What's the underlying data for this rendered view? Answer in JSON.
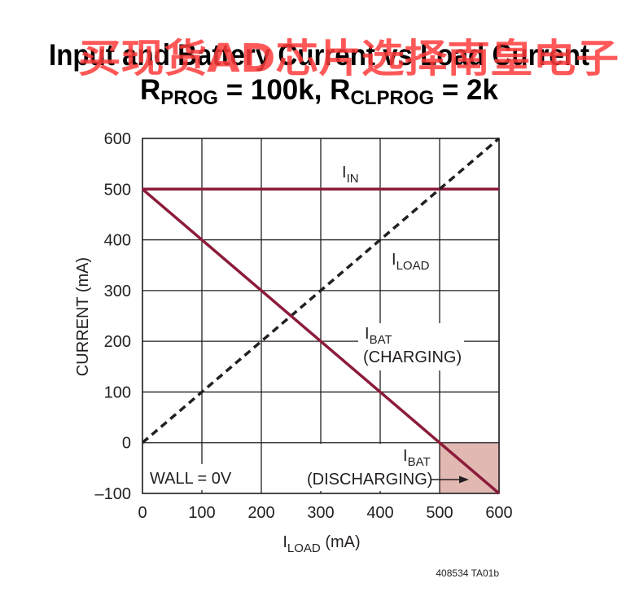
{
  "title": {
    "line1": "Input and Battery Current vs Load Current",
    "line2_r1": "R",
    "line2_r1_sub": "PROG",
    "line2_mid": " = 100k, R",
    "line2_r2_sub": "CLPROG",
    "line2_end": " = 2k"
  },
  "watermark": "买现货AD芯片选择南皇电子",
  "figure_id": "408534 TA01b",
  "colors": {
    "curve": "#8c1c3a",
    "shade": "#e2b8b3",
    "grid": "#231f20",
    "watermark": "#ff3b3b"
  },
  "chart_data": {
    "type": "line",
    "xlabel_main": "I",
    "xlabel_sub": "LOAD",
    "xlabel_unit": " (mA)",
    "ylabel": "CURRENT (mA)",
    "xlim": [
      0,
      600
    ],
    "ylim": [
      -100,
      600
    ],
    "x_ticks": [
      "0",
      "100",
      "200",
      "300",
      "400",
      "500",
      "600"
    ],
    "y_ticks": [
      "600",
      "500",
      "400",
      "300",
      "200",
      "100",
      "0",
      "–100"
    ],
    "grid": true,
    "series": [
      {
        "name": "IN",
        "style": "solid",
        "x": [
          0,
          600
        ],
        "y": [
          500,
          500
        ]
      },
      {
        "name": "LOAD",
        "style": "dashed",
        "x": [
          0,
          600
        ],
        "y": [
          0,
          600
        ]
      },
      {
        "name": "BAT",
        "style": "solid",
        "x": [
          0,
          600
        ],
        "y": [
          500,
          -100
        ]
      }
    ],
    "shaded_region": {
      "x": [
        500,
        600
      ],
      "y": [
        -100,
        0
      ]
    },
    "annotations": {
      "iin": {
        "main": "I",
        "sub": "IN"
      },
      "iload": {
        "main": "I",
        "sub": "LOAD"
      },
      "ibat_charging": {
        "main": "I",
        "sub": "BAT",
        "note": "(CHARGING)"
      },
      "ibat_discharging": {
        "main": "I",
        "sub": "BAT",
        "note": "(DISCHARGING)"
      },
      "wall": "WALL = 0V"
    }
  }
}
